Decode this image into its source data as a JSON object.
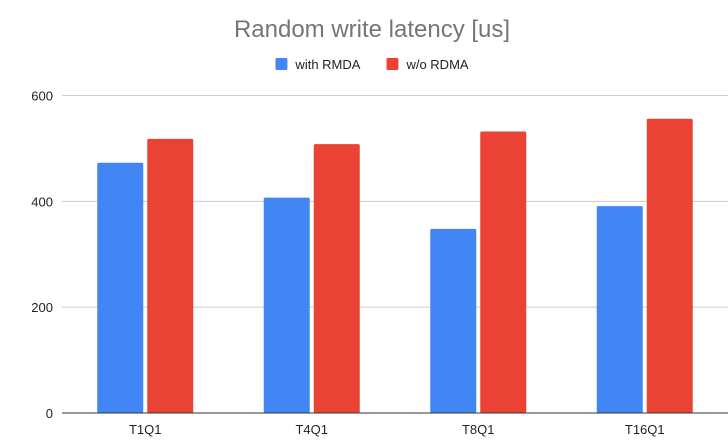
{
  "chart_data": {
    "type": "bar",
    "title": "Random write latency [us]",
    "categories": [
      "T1Q1",
      "T4Q1",
      "T8Q1",
      "T16Q1"
    ],
    "series": [
      {
        "name": "with RMDA",
        "color": "#4285f4",
        "values": [
          473,
          407,
          348,
          391
        ]
      },
      {
        "name": "w/o RDMA",
        "color": "#ea4335",
        "values": [
          518,
          508,
          532,
          556
        ]
      }
    ],
    "ylim": [
      0,
      600
    ],
    "yticks": [
      0,
      200,
      400,
      600
    ],
    "xlabel": "",
    "ylabel": "",
    "grid": true,
    "legend": "top-center"
  }
}
